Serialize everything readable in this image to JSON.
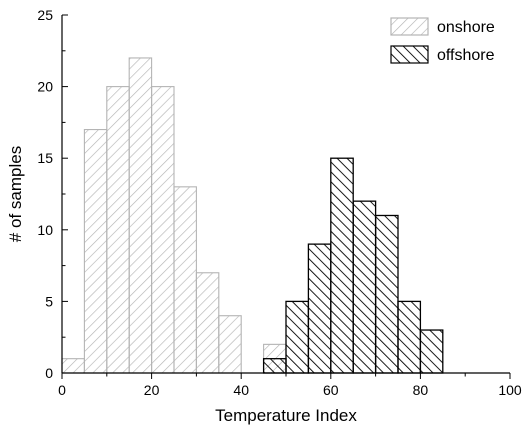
{
  "chart_data": {
    "type": "bar",
    "title": "",
    "xlabel": "Temperature Index",
    "ylabel": "# of samples",
    "xlim": [
      0,
      100
    ],
    "ylim": [
      0,
      25
    ],
    "x_ticks": [
      "0",
      "20",
      "40",
      "60",
      "80",
      "100"
    ],
    "y_ticks": [
      "0",
      "5",
      "10",
      "15",
      "20",
      "25"
    ],
    "bin_width": 5,
    "legend_position": "top-right",
    "series": [
      {
        "name": "onshore",
        "color": "#b4b4b4",
        "pattern": "forward-hatch",
        "bins": [
          {
            "x0": 0,
            "x1": 5,
            "value": 1
          },
          {
            "x0": 5,
            "x1": 10,
            "value": 17
          },
          {
            "x0": 10,
            "x1": 15,
            "value": 20
          },
          {
            "x0": 15,
            "x1": 20,
            "value": 22
          },
          {
            "x0": 20,
            "x1": 25,
            "value": 20
          },
          {
            "x0": 25,
            "x1": 30,
            "value": 13
          },
          {
            "x0": 30,
            "x1": 35,
            "value": 7
          },
          {
            "x0": 35,
            "x1": 40,
            "value": 4
          },
          {
            "x0": 45,
            "x1": 50,
            "value": 2
          }
        ]
      },
      {
        "name": "offshore",
        "color": "#000000",
        "pattern": "back-hatch",
        "bins": [
          {
            "x0": 45,
            "x1": 50,
            "value": 1
          },
          {
            "x0": 50,
            "x1": 55,
            "value": 5
          },
          {
            "x0": 55,
            "x1": 60,
            "value": 9
          },
          {
            "x0": 60,
            "x1": 65,
            "value": 15
          },
          {
            "x0": 65,
            "x1": 70,
            "value": 12
          },
          {
            "x0": 70,
            "x1": 75,
            "value": 11
          },
          {
            "x0": 75,
            "x1": 80,
            "value": 5
          },
          {
            "x0": 80,
            "x1": 85,
            "value": 3
          }
        ]
      }
    ]
  }
}
